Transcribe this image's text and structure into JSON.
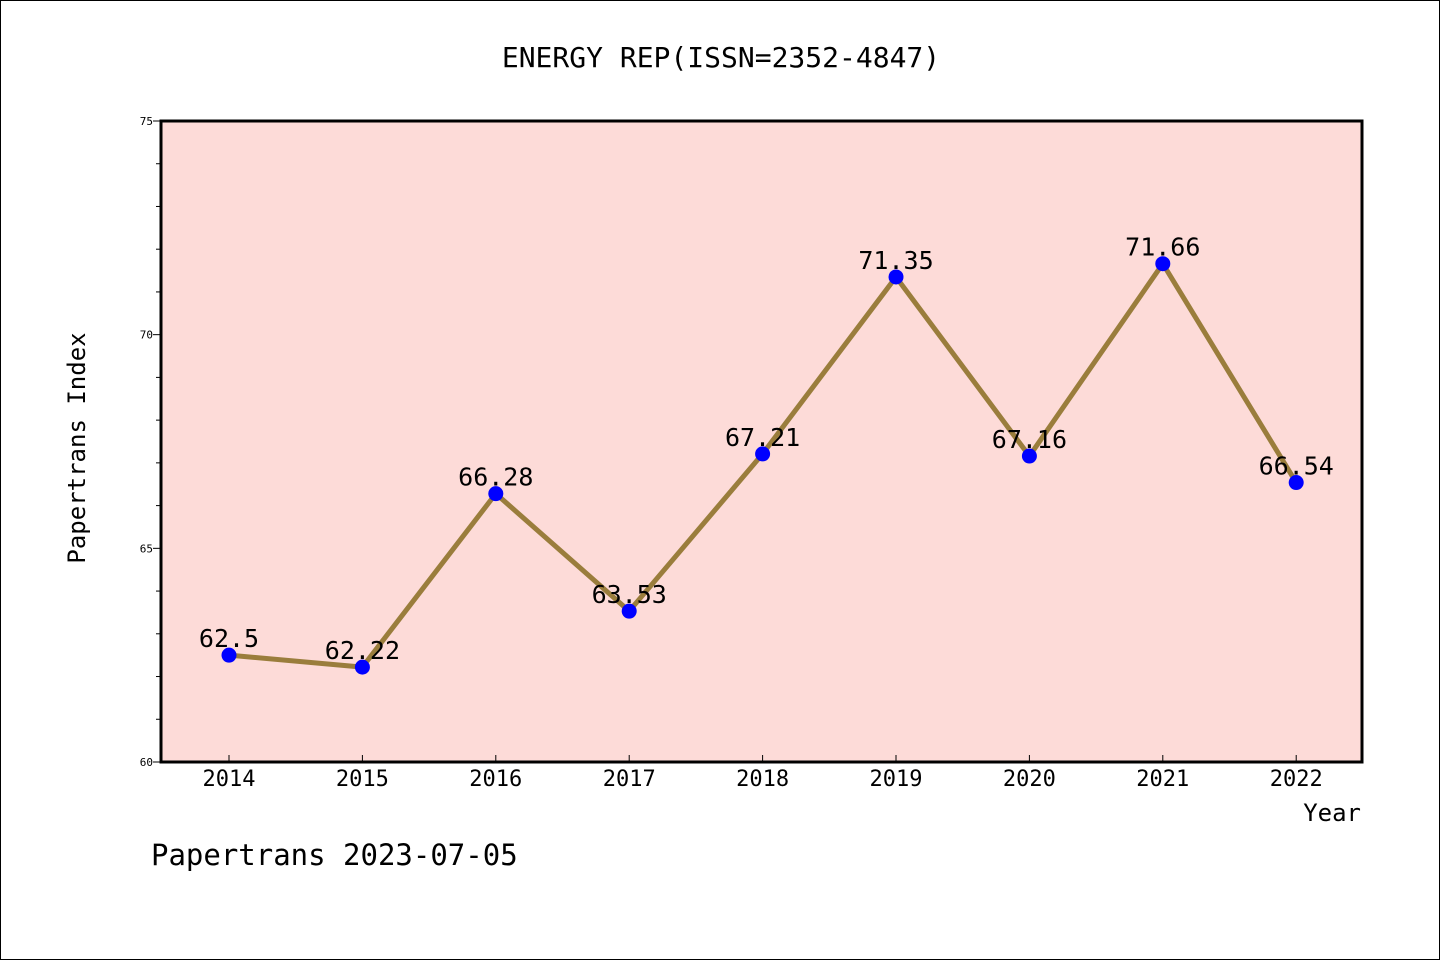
{
  "chart_data": {
    "type": "line",
    "title": "ENERGY REP(ISSN=2352-4847)",
    "xlabel": "Year",
    "ylabel": "Papertrans Index",
    "categories": [
      "2014",
      "2015",
      "2016",
      "2017",
      "2018",
      "2019",
      "2020",
      "2021",
      "2022"
    ],
    "series": [
      {
        "values": [
          62.5,
          62.22,
          66.28,
          63.53,
          67.21,
          71.35,
          67.16,
          71.66,
          66.54
        ],
        "data_labels": [
          "62.5",
          "62.22",
          "66.28",
          "63.53",
          "67.21",
          "71.35",
          "67.16",
          "71.66",
          "66.54"
        ]
      }
    ],
    "ylim": [
      60,
      75
    ],
    "y_ticks": [
      "60",
      "65",
      "70",
      "75"
    ],
    "grid": false,
    "colors": {
      "plot_background": "#fddbd8",
      "line": "#9a7d3c",
      "marker": "#0000ff"
    }
  },
  "footer": "Papertrans 2023-07-05"
}
